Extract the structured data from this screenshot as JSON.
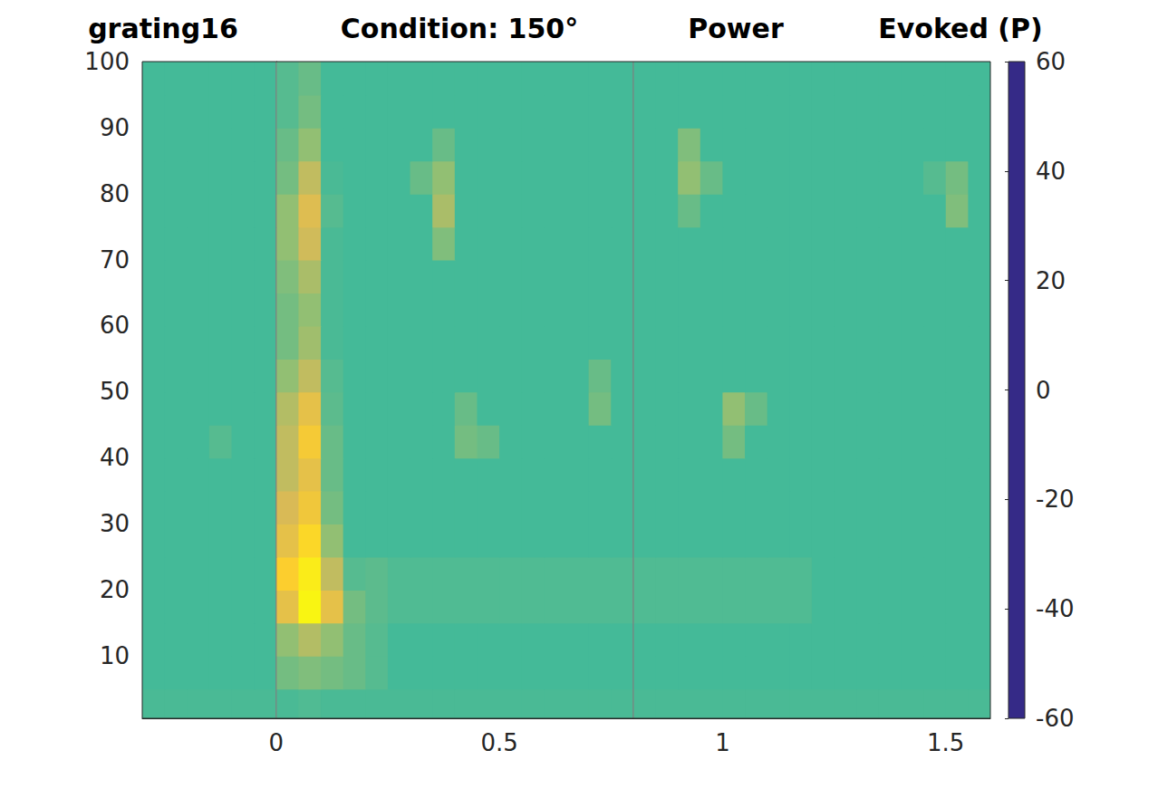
{
  "chart_data": {
    "type": "heatmap",
    "title": [
      "grating16",
      "Condition: 150°",
      "Power",
      "Evoked (P)"
    ],
    "x": [
      -0.275,
      -0.225,
      -0.175,
      -0.125,
      -0.075,
      -0.025,
      0.025,
      0.075,
      0.125,
      0.175,
      0.225,
      0.275,
      0.325,
      0.375,
      0.425,
      0.475,
      0.525,
      0.575,
      0.625,
      0.675,
      0.725,
      0.775,
      0.825,
      0.875,
      0.925,
      0.975,
      1.025,
      1.075,
      1.125,
      1.175,
      1.225,
      1.275,
      1.325,
      1.375,
      1.425,
      1.475,
      1.525,
      1.575
    ],
    "y": [
      2.5,
      7.5,
      12.5,
      17.5,
      22.5,
      27.5,
      32.5,
      37.5,
      42.5,
      47.5,
      52.5,
      57.5,
      62.5,
      67.5,
      72.5,
      77.5,
      82.5,
      87.5,
      92.5,
      97.5
    ],
    "cells": [
      [
        3,
        3,
        3,
        3,
        3,
        3,
        3,
        4,
        3,
        3,
        3,
        3,
        3,
        3,
        3,
        3,
        3,
        3,
        3,
        3,
        3,
        3,
        3,
        3,
        3,
        3,
        3,
        3,
        3,
        3,
        3,
        3,
        3,
        3,
        3,
        3,
        3,
        3
      ],
      [
        2,
        2,
        2,
        2,
        2,
        2,
        10,
        12,
        10,
        8,
        5,
        2,
        2,
        2,
        2,
        2,
        2,
        2,
        2,
        2,
        2,
        2,
        2,
        2,
        2,
        2,
        2,
        2,
        2,
        2,
        2,
        2,
        2,
        2,
        2,
        2,
        2,
        2
      ],
      [
        2,
        2,
        2,
        2,
        2,
        2,
        15,
        22,
        15,
        8,
        5,
        2,
        2,
        2,
        2,
        2,
        2,
        2,
        2,
        2,
        2,
        2,
        2,
        2,
        2,
        2,
        2,
        2,
        2,
        2,
        2,
        2,
        2,
        2,
        2,
        2,
        2,
        2
      ],
      [
        2,
        2,
        2,
        2,
        2,
        2,
        35,
        58,
        35,
        10,
        6,
        4,
        4,
        4,
        4,
        4,
        4,
        4,
        4,
        4,
        4,
        4,
        4,
        4,
        4,
        4,
        4,
        4,
        4,
        4,
        2,
        2,
        2,
        2,
        2,
        2,
        2,
        2
      ],
      [
        2,
        2,
        2,
        2,
        2,
        2,
        45,
        55,
        25,
        5,
        6,
        4,
        4,
        4,
        4,
        4,
        4,
        4,
        4,
        4,
        4,
        4,
        4,
        4,
        4,
        4,
        4,
        4,
        4,
        4,
        2,
        2,
        2,
        2,
        2,
        2,
        2,
        2
      ],
      [
        2,
        2,
        2,
        2,
        2,
        2,
        35,
        48,
        15,
        2,
        2,
        2,
        2,
        2,
        2,
        2,
        2,
        2,
        2,
        2,
        2,
        2,
        2,
        2,
        2,
        2,
        2,
        2,
        2,
        2,
        2,
        2,
        2,
        2,
        2,
        2,
        2,
        2
      ],
      [
        2,
        2,
        2,
        2,
        2,
        2,
        30,
        40,
        10,
        2,
        2,
        2,
        2,
        2,
        2,
        2,
        2,
        2,
        2,
        2,
        2,
        2,
        2,
        2,
        2,
        2,
        2,
        2,
        2,
        2,
        2,
        2,
        2,
        2,
        2,
        2,
        2,
        2
      ],
      [
        2,
        2,
        2,
        2,
        2,
        2,
        25,
        35,
        8,
        2,
        2,
        2,
        2,
        2,
        2,
        2,
        2,
        2,
        2,
        2,
        2,
        2,
        2,
        2,
        2,
        2,
        2,
        2,
        2,
        2,
        2,
        2,
        2,
        2,
        2,
        2,
        2,
        2
      ],
      [
        2,
        2,
        2,
        5,
        2,
        2,
        25,
        42,
        8,
        2,
        2,
        2,
        2,
        2,
        10,
        8,
        2,
        2,
        2,
        2,
        2,
        2,
        2,
        2,
        2,
        2,
        10,
        2,
        2,
        2,
        2,
        2,
        2,
        2,
        2,
        2,
        2,
        2
      ],
      [
        2,
        2,
        2,
        2,
        2,
        2,
        22,
        35,
        6,
        2,
        2,
        2,
        2,
        2,
        8,
        2,
        2,
        2,
        2,
        2,
        10,
        2,
        2,
        2,
        2,
        2,
        15,
        8,
        2,
        2,
        2,
        2,
        2,
        2,
        2,
        2,
        2,
        2
      ],
      [
        2,
        2,
        2,
        2,
        2,
        2,
        15,
        25,
        5,
        2,
        2,
        2,
        2,
        2,
        2,
        2,
        2,
        2,
        2,
        2,
        8,
        2,
        2,
        2,
        2,
        2,
        2,
        2,
        2,
        2,
        2,
        2,
        2,
        2,
        2,
        2,
        2,
        2
      ],
      [
        2,
        2,
        2,
        2,
        2,
        2,
        10,
        18,
        3,
        2,
        2,
        2,
        2,
        2,
        2,
        2,
        2,
        2,
        2,
        2,
        2,
        2,
        2,
        2,
        2,
        2,
        2,
        2,
        2,
        2,
        2,
        2,
        2,
        2,
        2,
        2,
        2,
        2
      ],
      [
        2,
        2,
        2,
        2,
        2,
        2,
        10,
        15,
        3,
        2,
        2,
        2,
        2,
        2,
        2,
        2,
        2,
        2,
        2,
        2,
        2,
        2,
        2,
        2,
        2,
        2,
        2,
        2,
        2,
        2,
        2,
        2,
        2,
        2,
        2,
        2,
        2,
        2
      ],
      [
        2,
        2,
        2,
        2,
        2,
        2,
        12,
        20,
        3,
        2,
        2,
        2,
        2,
        2,
        2,
        2,
        2,
        2,
        2,
        2,
        2,
        2,
        2,
        2,
        2,
        2,
        2,
        2,
        2,
        2,
        2,
        2,
        2,
        2,
        2,
        2,
        2,
        2
      ],
      [
        2,
        2,
        2,
        2,
        2,
        2,
        15,
        28,
        3,
        2,
        2,
        2,
        2,
        12,
        2,
        2,
        2,
        2,
        2,
        2,
        2,
        2,
        2,
        2,
        2,
        2,
        2,
        2,
        2,
        2,
        2,
        2,
        2,
        2,
        2,
        2,
        2,
        2
      ],
      [
        2,
        2,
        2,
        2,
        2,
        2,
        15,
        32,
        5,
        2,
        2,
        2,
        2,
        20,
        2,
        2,
        2,
        2,
        2,
        2,
        2,
        2,
        2,
        2,
        8,
        2,
        2,
        2,
        2,
        2,
        2,
        2,
        2,
        2,
        2,
        2,
        12,
        2
      ],
      [
        2,
        2,
        2,
        2,
        2,
        2,
        10,
        25,
        3,
        2,
        2,
        2,
        8,
        15,
        2,
        2,
        2,
        2,
        2,
        2,
        2,
        2,
        2,
        2,
        15,
        8,
        2,
        2,
        2,
        2,
        2,
        2,
        2,
        2,
        2,
        5,
        10,
        2
      ],
      [
        2,
        2,
        2,
        2,
        2,
        2,
        8,
        15,
        2,
        2,
        2,
        2,
        2,
        8,
        2,
        2,
        2,
        2,
        2,
        2,
        2,
        2,
        2,
        2,
        12,
        2,
        2,
        2,
        2,
        2,
        2,
        2,
        2,
        2,
        2,
        2,
        2,
        2
      ],
      [
        2,
        2,
        2,
        2,
        2,
        2,
        5,
        10,
        2,
        2,
        2,
        2,
        2,
        2,
        2,
        2,
        2,
        2,
        2,
        2,
        2,
        2,
        2,
        2,
        2,
        2,
        2,
        2,
        2,
        2,
        2,
        2,
        2,
        2,
        2,
        2,
        2,
        2
      ],
      [
        2,
        2,
        2,
        2,
        2,
        2,
        5,
        8,
        2,
        2,
        2,
        2,
        2,
        2,
        2,
        2,
        2,
        2,
        2,
        2,
        2,
        2,
        2,
        2,
        2,
        2,
        2,
        2,
        2,
        2,
        2,
        2,
        2,
        2,
        2,
        2,
        2,
        2
      ]
    ],
    "xlim": [
      -0.3,
      1.6
    ],
    "xticks": [
      0,
      0.5,
      1,
      1.5
    ],
    "ylim": [
      0.5,
      100
    ],
    "yticks": [
      10,
      20,
      30,
      40,
      50,
      60,
      70,
      80,
      90,
      100
    ],
    "colorbar_range": [
      -60,
      60
    ],
    "colorbar_ticks": [
      -60,
      -40,
      -20,
      0,
      20,
      40,
      60
    ],
    "vlines": [
      0,
      0.8
    ]
  }
}
